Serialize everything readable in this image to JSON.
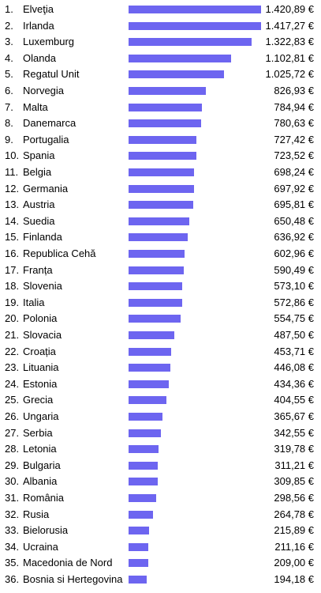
{
  "chart_data": {
    "type": "bar",
    "orientation": "horizontal",
    "unit": "€",
    "bar_color": "#6d65f0",
    "rows": [
      {
        "rank": "1.",
        "name": "Elveţia",
        "value": 1420.89,
        "label": "1.420,89 €"
      },
      {
        "rank": "2.",
        "name": "Irlanda",
        "value": 1417.27,
        "label": "1.417,27 €"
      },
      {
        "rank": "3.",
        "name": "Luxemburg",
        "value": 1322.83,
        "label": "1.322,83 €"
      },
      {
        "rank": "4.",
        "name": "Olanda",
        "value": 1102.81,
        "label": "1.102,81 €"
      },
      {
        "rank": "5.",
        "name": "Regatul Unit",
        "value": 1025.72,
        "label": "1.025,72 €"
      },
      {
        "rank": "6.",
        "name": "Norvegia",
        "value": 826.93,
        "label": "826,93 €"
      },
      {
        "rank": "7.",
        "name": "Malta",
        "value": 784.94,
        "label": "784,94 €"
      },
      {
        "rank": "8.",
        "name": "Danemarca",
        "value": 780.63,
        "label": "780,63 €"
      },
      {
        "rank": "9.",
        "name": "Portugalia",
        "value": 727.42,
        "label": "727,42 €"
      },
      {
        "rank": "10.",
        "name": "Spania",
        "value": 723.52,
        "label": "723,52 €"
      },
      {
        "rank": "11.",
        "name": "Belgia",
        "value": 698.24,
        "label": "698,24 €"
      },
      {
        "rank": "12.",
        "name": "Germania",
        "value": 697.92,
        "label": "697,92 €"
      },
      {
        "rank": "13.",
        "name": "Austria",
        "value": 695.81,
        "label": "695,81 €"
      },
      {
        "rank": "14.",
        "name": "Suedia",
        "value": 650.48,
        "label": "650,48 €"
      },
      {
        "rank": "15.",
        "name": "Finlanda",
        "value": 636.92,
        "label": "636,92 €"
      },
      {
        "rank": "16.",
        "name": "Republica Cehă",
        "value": 602.96,
        "label": "602,96 €"
      },
      {
        "rank": "17.",
        "name": "Franța",
        "value": 590.49,
        "label": "590,49 €"
      },
      {
        "rank": "18.",
        "name": "Slovenia",
        "value": 573.1,
        "label": "573,10 €"
      },
      {
        "rank": "19.",
        "name": "Italia",
        "value": 572.86,
        "label": "572,86 €"
      },
      {
        "rank": "20.",
        "name": "Polonia",
        "value": 554.75,
        "label": "554,75 €"
      },
      {
        "rank": "21.",
        "name": "Slovacia",
        "value": 487.5,
        "label": "487,50 €"
      },
      {
        "rank": "22.",
        "name": "Croația",
        "value": 453.71,
        "label": "453,71 €"
      },
      {
        "rank": "23.",
        "name": "Lituania",
        "value": 446.08,
        "label": "446,08 €"
      },
      {
        "rank": "24.",
        "name": "Estonia",
        "value": 434.36,
        "label": "434,36 €"
      },
      {
        "rank": "25.",
        "name": "Grecia",
        "value": 404.55,
        "label": "404,55 €"
      },
      {
        "rank": "26.",
        "name": "Ungaria",
        "value": 365.67,
        "label": "365,67 €"
      },
      {
        "rank": "27.",
        "name": "Serbia",
        "value": 342.55,
        "label": "342,55 €"
      },
      {
        "rank": "28.",
        "name": "Letonia",
        "value": 319.78,
        "label": "319,78 €"
      },
      {
        "rank": "29.",
        "name": "Bulgaria",
        "value": 311.21,
        "label": "311,21 €"
      },
      {
        "rank": "30.",
        "name": "Albania",
        "value": 309.85,
        "label": "309,85 €"
      },
      {
        "rank": "31.",
        "name": "România",
        "value": 298.56,
        "label": "298,56 €"
      },
      {
        "rank": "32.",
        "name": "Rusia",
        "value": 264.78,
        "label": "264,78 €"
      },
      {
        "rank": "33.",
        "name": "Bielorusia",
        "value": 215.89,
        "label": "215,89 €"
      },
      {
        "rank": "34.",
        "name": "Ucraina",
        "value": 211.16,
        "label": "211,16 €"
      },
      {
        "rank": "35.",
        "name": "Macedonia de Nord",
        "value": 209.0,
        "label": "209,00 €"
      },
      {
        "rank": "36.",
        "name": "Bosnia si Hertegovina",
        "value": 194.18,
        "label": "194,18 €"
      }
    ]
  }
}
